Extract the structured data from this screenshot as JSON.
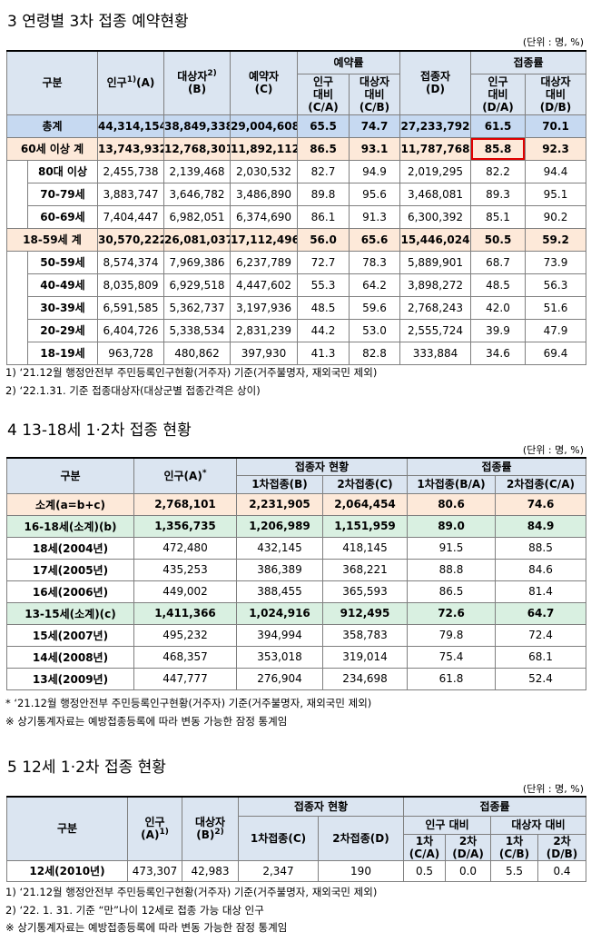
{
  "t1": {
    "title": "3 연령별 3차 접종 예약현황",
    "unit": "(단위 : 명, %)",
    "header": {
      "gubun": "구분",
      "pop": {
        "text": "인구",
        "sup": "1)",
        "tail": "(A)"
      },
      "target": {
        "text": "대상자",
        "sup": "2)",
        "tail": "(B)"
      },
      "resv": {
        "text": "예약자",
        "tail": "(C)"
      },
      "resv_rate": "예약률",
      "r1": [
        "인구",
        "대비",
        "(C/A)"
      ],
      "r2": [
        "대상자",
        "대비",
        "(C/B)"
      ],
      "vacc": {
        "text": "접종자",
        "tail": "(D)"
      },
      "vacc_rate": "접종률",
      "v1": [
        "인구",
        "대비",
        "(D/A)"
      ],
      "v2": [
        "대상자",
        "대비",
        "(D/B)"
      ]
    },
    "rows": [
      {
        "label": "총계",
        "color": "#c6d9f1",
        "values": [
          "44,314,154",
          "38,849,338",
          "29,004,608",
          "65.5",
          "74.7",
          "27,233,792",
          "61.5",
          "70.1"
        ],
        "children": []
      },
      {
        "label": "60세 이상 계",
        "color": "#fde9d9",
        "highlight": 6,
        "values": [
          "13,743,932",
          "12,768,301",
          "11,892,112",
          "86.5",
          "93.1",
          "11,787,768",
          "85.8",
          "92.3"
        ],
        "children": [
          {
            "label": "80대 이상",
            "values": [
              "2,455,738",
              "2,139,468",
              "2,030,532",
              "82.7",
              "94.9",
              "2,019,295",
              "82.2",
              "94.4"
            ]
          },
          {
            "label": "70-79세",
            "values": [
              "3,883,747",
              "3,646,782",
              "3,486,890",
              "89.8",
              "95.6",
              "3,468,081",
              "89.3",
              "95.1"
            ]
          },
          {
            "label": "60-69세",
            "values": [
              "7,404,447",
              "6,982,051",
              "6,374,690",
              "86.1",
              "91.3",
              "6,300,392",
              "85.1",
              "90.2"
            ]
          }
        ]
      },
      {
        "label": "18-59세 계",
        "color": "#fde9d9",
        "values": [
          "30,570,222",
          "26,081,037",
          "17,112,496",
          "56.0",
          "65.6",
          "15,446,024",
          "50.5",
          "59.2"
        ],
        "children": [
          {
            "label": "50-59세",
            "values": [
              "8,574,374",
              "7,969,386",
              "6,237,789",
              "72.7",
              "78.3",
              "5,889,901",
              "68.7",
              "73.9"
            ]
          },
          {
            "label": "40-49세",
            "values": [
              "8,035,809",
              "6,929,518",
              "4,447,602",
              "55.3",
              "64.2",
              "3,898,272",
              "48.5",
              "56.3"
            ]
          },
          {
            "label": "30-39세",
            "values": [
              "6,591,585",
              "5,362,737",
              "3,197,936",
              "48.5",
              "59.6",
              "2,768,243",
              "42.0",
              "51.6"
            ]
          },
          {
            "label": "20-29세",
            "values": [
              "6,404,726",
              "5,338,534",
              "2,831,239",
              "44.2",
              "53.0",
              "2,555,724",
              "39.9",
              "47.9"
            ]
          },
          {
            "label": "18-19세",
            "values": [
              "963,728",
              "480,862",
              "397,930",
              "41.3",
              "82.8",
              "333,884",
              "34.6",
              "69.4"
            ]
          }
        ]
      }
    ],
    "notes": [
      "1) ‘21.12월 행정안전부 주민등록인구현황(거주자) 기준(거주불명자, 재외국민 제외)",
      "2) ‘22.1.31. 기준 접종대상자(대상군별 접종간격은 상이)"
    ]
  },
  "t2": {
    "title": "4 13-18세 1·2차 접종 현황",
    "unit": "(단위 : 명, %)",
    "header": {
      "gubun": "구분",
      "pop": {
        "text": "인구(A)",
        "sup": "*"
      },
      "status": "접종자 현황",
      "d1": "1차접종(B)",
      "d2": "2차접종(C)",
      "rate": "접종률",
      "p1": "1차접종(B/A)",
      "p2": "2차접종(C/A)"
    },
    "rows": [
      {
        "label": "소계(a=b+c)",
        "color": "#fde9d9",
        "values": [
          "2,768,101",
          "2,231,905",
          "2,064,454",
          "80.6",
          "74.6"
        ]
      },
      {
        "label": "16-18세(소계)(b)",
        "color": "#d9f0e1",
        "values": [
          "1,356,735",
          "1,206,989",
          "1,151,959",
          "89.0",
          "84.9"
        ]
      },
      {
        "label": "18세(2004년)",
        "values": [
          "472,480",
          "432,145",
          "418,145",
          "91.5",
          "88.5"
        ]
      },
      {
        "label": "17세(2005년)",
        "values": [
          "435,253",
          "386,389",
          "368,221",
          "88.8",
          "84.6"
        ]
      },
      {
        "label": "16세(2006년)",
        "values": [
          "449,002",
          "388,455",
          "365,593",
          "86.5",
          "81.4"
        ]
      },
      {
        "label": "13-15세(소계)(c)",
        "color": "#d9f0e1",
        "values": [
          "1,411,366",
          "1,024,916",
          "912,495",
          "72.6",
          "64.7"
        ]
      },
      {
        "label": "15세(2007년)",
        "values": [
          "495,232",
          "394,994",
          "358,783",
          "79.8",
          "72.4"
        ]
      },
      {
        "label": "14세(2008년)",
        "values": [
          "468,357",
          "353,018",
          "319,014",
          "75.4",
          "68.1"
        ]
      },
      {
        "label": "13세(2009년)",
        "values": [
          "447,777",
          "276,904",
          "234,698",
          "61.8",
          "52.4"
        ]
      }
    ],
    "notes": [
      "* ‘21.12월 행정안전부 주민등록인구현황(거주자) 기준(거주불명자, 재외국민 제외)",
      "※ 상기통계자료는 예방접종등록에 따라 변동 가능한 잠정 통계임"
    ]
  },
  "t3": {
    "title": "5 12세 1·2차 접종 현황",
    "unit": "(단위 : 명, %)",
    "header": {
      "gubun": "구분",
      "pop": {
        "text": "인구",
        "tail": "(A)",
        "sup": "1)"
      },
      "target": {
        "text": "대상자",
        "tail": "(B)",
        "sup": "2)"
      },
      "status": "접종자 현황",
      "d1": "1차접종(C)",
      "d2": "2차접종(D)",
      "rate": "접종률",
      "popr": "인구 대비",
      "tgtr": "대상자 대비",
      "c1": [
        "1차",
        "(C/A)"
      ],
      "c2": [
        "2차",
        "(D/A)"
      ],
      "c3": [
        "1차",
        "(C/B)"
      ],
      "c4": [
        "2차",
        "(D/B)"
      ]
    },
    "rows": [
      {
        "label": "12세(2010년)",
        "values": [
          "473,307",
          "42,983",
          "2,347",
          "190",
          "0.5",
          "0.0",
          "5.5",
          "0.4"
        ]
      }
    ],
    "notes": [
      "1) ‘21.12월 행정안전부 주민등록인구현황(거주자) 기준(거주불명자, 재외국민 제외)",
      "2) ‘22. 1. 31. 기준 “만”나이 12세로 접종 가능 대상 인구",
      "※ 상기통계자료는 예방접종등록에 따라 변동 가능한 잠정 통계임"
    ]
  }
}
